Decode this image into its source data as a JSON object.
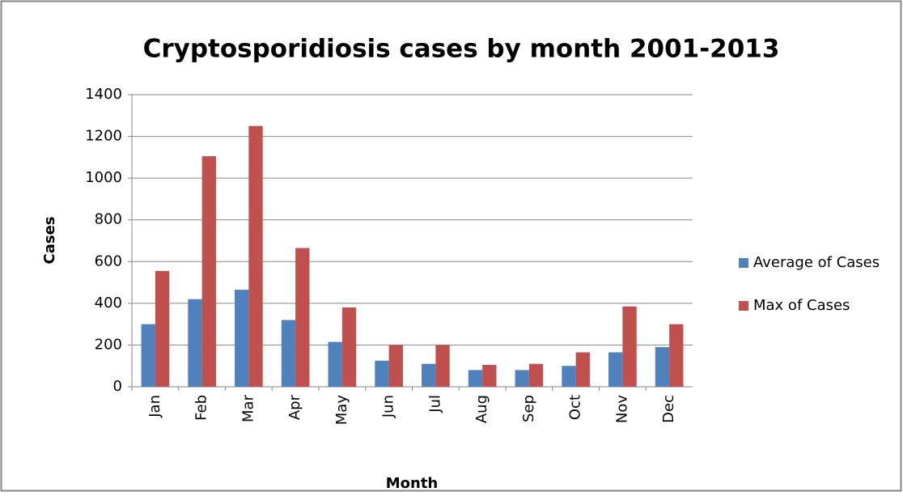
{
  "chart_data": {
    "type": "bar",
    "title": "Cryptosporidiosis cases by month 2001-2013",
    "x_label": "Month",
    "y_label": "Cases",
    "categories": [
      "Jan",
      "Feb",
      "Mar",
      "Apr",
      "May",
      "Jun",
      "Jul",
      "Aug",
      "Sep",
      "Oct",
      "Nov",
      "Dec"
    ],
    "series": [
      {
        "name": "Average of Cases",
        "color": "#4f81bd",
        "values": [
          300,
          420,
          465,
          320,
          215,
          125,
          110,
          80,
          80,
          100,
          165,
          190
        ]
      },
      {
        "name": "Max of Cases",
        "color": "#c0504d",
        "values": [
          555,
          1105,
          1250,
          665,
          380,
          200,
          200,
          105,
          110,
          165,
          385,
          300
        ]
      }
    ],
    "ylim": [
      0,
      1400
    ],
    "yticks": [
      0,
      200,
      400,
      600,
      800,
      1000,
      1200,
      1400
    ],
    "grid": true,
    "legend": "right"
  }
}
